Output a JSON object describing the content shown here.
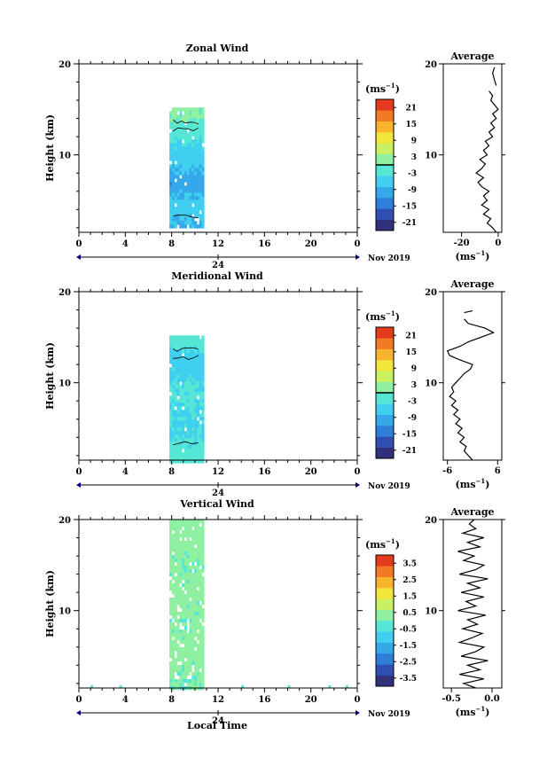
{
  "figure": {
    "date_label": "Nov 2019",
    "day_label": "24",
    "xlabel": "Local Time",
    "ylabel": "Height (km)",
    "unit_label": "(ms",
    "unit_sup": "−1",
    "unit_close": ")",
    "average_title": "Average",
    "x_ticks": [
      "0",
      "4",
      "8",
      "12",
      "16",
      "20",
      "0"
    ],
    "y_ticks": [
      "20",
      "10"
    ]
  },
  "chart_data": [
    {
      "type": "heatmap",
      "title": "Zonal Wind",
      "xlabel": "",
      "ylabel": "Height (km)",
      "xlim": [
        0,
        24
      ],
      "ylim": [
        1.5,
        20
      ],
      "data_extent": {
        "time_start": 7.8,
        "time_end": 10.6,
        "height_start": 2.2,
        "height_end": 15.2
      },
      "height_profile": [
        {
          "height": 3,
          "value": -8
        },
        {
          "height": 5,
          "value": -6
        },
        {
          "height": 7,
          "value": -11
        },
        {
          "height": 9,
          "value": -7
        },
        {
          "height": 11,
          "value": -5
        },
        {
          "height": 13,
          "value": -2
        },
        {
          "height": 14.5,
          "value": 1
        }
      ],
      "colorbar": {
        "ticks": [
          "21",
          "15",
          "9",
          "3",
          "-3",
          "-9",
          "-15",
          "-21"
        ],
        "range": [
          -24,
          24
        ],
        "zero_line": 0
      },
      "average": {
        "title": "Average",
        "xticks": [
          "-20",
          "0"
        ],
        "xlim": [
          -30,
          2
        ],
        "ylim": [
          1.5,
          20
        ],
        "profile": [
          [
            1.5,
            -1
          ],
          [
            2,
            -3
          ],
          [
            2.5,
            -6
          ],
          [
            3,
            -4
          ],
          [
            3.5,
            -8
          ],
          [
            4,
            -5
          ],
          [
            4.5,
            -9
          ],
          [
            5,
            -6
          ],
          [
            5.5,
            -8
          ],
          [
            6,
            -5
          ],
          [
            6.5,
            -9
          ],
          [
            7,
            -11
          ],
          [
            7.5,
            -8
          ],
          [
            8,
            -12
          ],
          [
            8.5,
            -9
          ],
          [
            9,
            -7
          ],
          [
            9.5,
            -10
          ],
          [
            10,
            -6
          ],
          [
            10.5,
            -8
          ],
          [
            11,
            -5
          ],
          [
            11.5,
            -7
          ],
          [
            12,
            -3
          ],
          [
            12.5,
            -5
          ],
          [
            13,
            -2
          ],
          [
            13.5,
            -4
          ],
          [
            14,
            -1
          ],
          [
            14.5,
            -3
          ],
          [
            15,
            0
          ],
          [
            15.5,
            -2
          ],
          [
            16,
            -4
          ],
          [
            16.5,
            -3
          ],
          [
            17,
            -5
          ]
        ],
        "profile_upper": [
          [
            17.6,
            -1
          ],
          [
            18.2,
            -2
          ],
          [
            19,
            -3
          ],
          [
            19.6,
            -2
          ]
        ]
      }
    },
    {
      "type": "heatmap",
      "title": "Meridional Wind",
      "xlabel": "",
      "ylabel": "Height (km)",
      "xlim": [
        0,
        24
      ],
      "ylim": [
        1.5,
        20
      ],
      "data_extent": {
        "time_start": 7.8,
        "time_end": 10.6,
        "height_start": 1.5,
        "height_end": 15.2
      },
      "height_profile": [
        {
          "height": 3,
          "value": -3
        },
        {
          "height": 5,
          "value": -5
        },
        {
          "height": 7,
          "value": -4
        },
        {
          "height": 9,
          "value": -3
        },
        {
          "height": 11,
          "value": -5
        },
        {
          "height": 13,
          "value": -6
        },
        {
          "height": 14.5,
          "value": -2
        }
      ],
      "colorbar": {
        "ticks": [
          "21",
          "15",
          "9",
          "3",
          "-3",
          "-9",
          "-15",
          "-21"
        ],
        "range": [
          -24,
          24
        ],
        "zero_line": 0
      },
      "average": {
        "title": "Average",
        "xticks": [
          "-6",
          "6"
        ],
        "xlim": [
          -7,
          7
        ],
        "ylim": [
          1.5,
          20
        ],
        "profile": [
          [
            1.5,
            0
          ],
          [
            2,
            -1
          ],
          [
            2.5,
            -2
          ],
          [
            3,
            -1.5
          ],
          [
            3.5,
            -3
          ],
          [
            4,
            -2
          ],
          [
            4.5,
            -3.5
          ],
          [
            5,
            -2.5
          ],
          [
            5.5,
            -4
          ],
          [
            6,
            -3
          ],
          [
            6.5,
            -4.5
          ],
          [
            7,
            -3.5
          ],
          [
            7.5,
            -5
          ],
          [
            8,
            -4
          ],
          [
            8.5,
            -5.5
          ],
          [
            9,
            -4.5
          ],
          [
            9.5,
            -5
          ],
          [
            10,
            -4
          ],
          [
            10.5,
            -3
          ],
          [
            11,
            -2
          ],
          [
            11.5,
            -0.5
          ],
          [
            12,
            0
          ],
          [
            12.5,
            -3
          ],
          [
            13,
            -5.5
          ],
          [
            13.5,
            -6
          ],
          [
            14,
            -3
          ],
          [
            14.5,
            -1
          ],
          [
            15,
            2
          ],
          [
            15.5,
            5
          ],
          [
            16,
            3
          ],
          [
            16.5,
            -1
          ],
          [
            17,
            -2
          ]
        ],
        "profile_upper": [
          [
            17.7,
            -2
          ],
          [
            17.9,
            0
          ]
        ]
      }
    },
    {
      "type": "heatmap",
      "title": "Vertical Wind",
      "xlabel": "Local Time",
      "ylabel": "Height (km)",
      "xlim": [
        0,
        24
      ],
      "ylim": [
        1.5,
        20
      ],
      "data_extent": {
        "time_start": 7.8,
        "time_end": 10.6,
        "height_start": 1.5,
        "height_end": 20
      },
      "height_profile": [
        {
          "height": 3,
          "value": 0.1
        },
        {
          "height": 6,
          "value": 0.2
        },
        {
          "height": 9,
          "value": 0.1
        },
        {
          "height": 12,
          "value": 0.2
        },
        {
          "height": 15,
          "value": 0.1
        },
        {
          "height": 18,
          "value": 0.2
        }
      ],
      "colorbar": {
        "ticks": [
          "3.5",
          "2.5",
          "1.5",
          "0.5",
          "-0.5",
          "-1.5",
          "-2.5",
          "-3.5"
        ],
        "range": [
          -4,
          4
        ]
      },
      "average": {
        "title": "Average",
        "xticks": [
          "-0.5",
          "0.0"
        ],
        "xlim": [
          -0.6,
          0.12
        ],
        "ylim": [
          1.5,
          20
        ],
        "profile": [
          [
            1.5,
            -0.2
          ],
          [
            2,
            -0.35
          ],
          [
            2.5,
            -0.1
          ],
          [
            3,
            -0.4
          ],
          [
            3.5,
            -0.15
          ],
          [
            4,
            -0.3
          ],
          [
            4.5,
            -0.05
          ],
          [
            5,
            -0.38
          ],
          [
            5.5,
            -0.2
          ],
          [
            6,
            -0.1
          ],
          [
            6.5,
            -0.4
          ],
          [
            7,
            -0.25
          ],
          [
            7.5,
            -0.12
          ],
          [
            8,
            -0.36
          ],
          [
            8.5,
            -0.18
          ],
          [
            9,
            -0.3
          ],
          [
            9.5,
            -0.08
          ],
          [
            10,
            -0.42
          ],
          [
            10.5,
            -0.2
          ],
          [
            11,
            -0.32
          ],
          [
            11.5,
            -0.1
          ],
          [
            12,
            -0.38
          ],
          [
            12.5,
            -0.15
          ],
          [
            13,
            -0.3
          ],
          [
            13.5,
            -0.05
          ],
          [
            14,
            -0.4
          ],
          [
            14.5,
            -0.2
          ],
          [
            15,
            -0.1
          ],
          [
            15.5,
            -0.35
          ],
          [
            16,
            -0.22
          ],
          [
            16.5,
            -0.42
          ],
          [
            17,
            -0.15
          ],
          [
            17.5,
            -0.3
          ],
          [
            18,
            -0.1
          ],
          [
            18.5,
            -0.36
          ],
          [
            19,
            -0.2
          ],
          [
            19.5,
            -0.28
          ],
          [
            20,
            -0.22
          ]
        ]
      }
    }
  ]
}
